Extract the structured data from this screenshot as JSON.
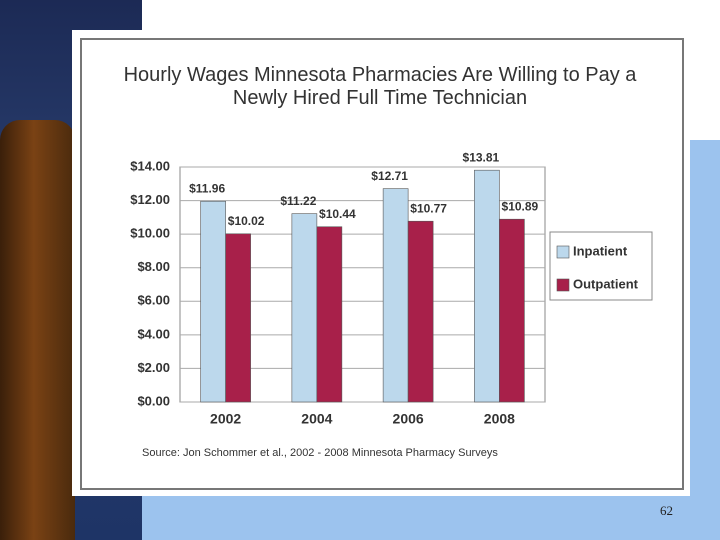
{
  "chart_data": {
    "type": "bar",
    "title": "Hourly Wages Minnesota Pharmacies Are Willing to Pay a Newly Hired Full Time Technician",
    "categories": [
      "2002",
      "2004",
      "2006",
      "2008"
    ],
    "series": [
      {
        "name": "Inpatient",
        "color": "#bcd8ec",
        "values": [
          11.96,
          11.22,
          12.71,
          13.81
        ],
        "value_labels": [
          "$11.96",
          "$11.22",
          "$12.71",
          "$13.81"
        ]
      },
      {
        "name": "Outpatient",
        "color": "#a8204a",
        "values": [
          10.02,
          10.44,
          10.77,
          10.89
        ],
        "value_labels": [
          "$10.02",
          "$10.44",
          "$10.77",
          "$10.89"
        ]
      }
    ],
    "ylim": [
      0,
      14
    ],
    "yticks": [
      {
        "value": 0,
        "label": "$0.00"
      },
      {
        "value": 2,
        "label": "$2.00"
      },
      {
        "value": 4,
        "label": "$4.00"
      },
      {
        "value": 6,
        "label": "$6.00"
      },
      {
        "value": 8,
        "label": "$8.00"
      },
      {
        "value": 10,
        "label": "$10.00"
      },
      {
        "value": 12,
        "label": "$12.00"
      },
      {
        "value": 14,
        "label": "$14.00"
      }
    ],
    "grid": true,
    "legend": "right",
    "source": "Source: Jon Schommer et al., 2002 - 2008 Minnesota Pharmacy Surveys"
  },
  "page_number": "62"
}
